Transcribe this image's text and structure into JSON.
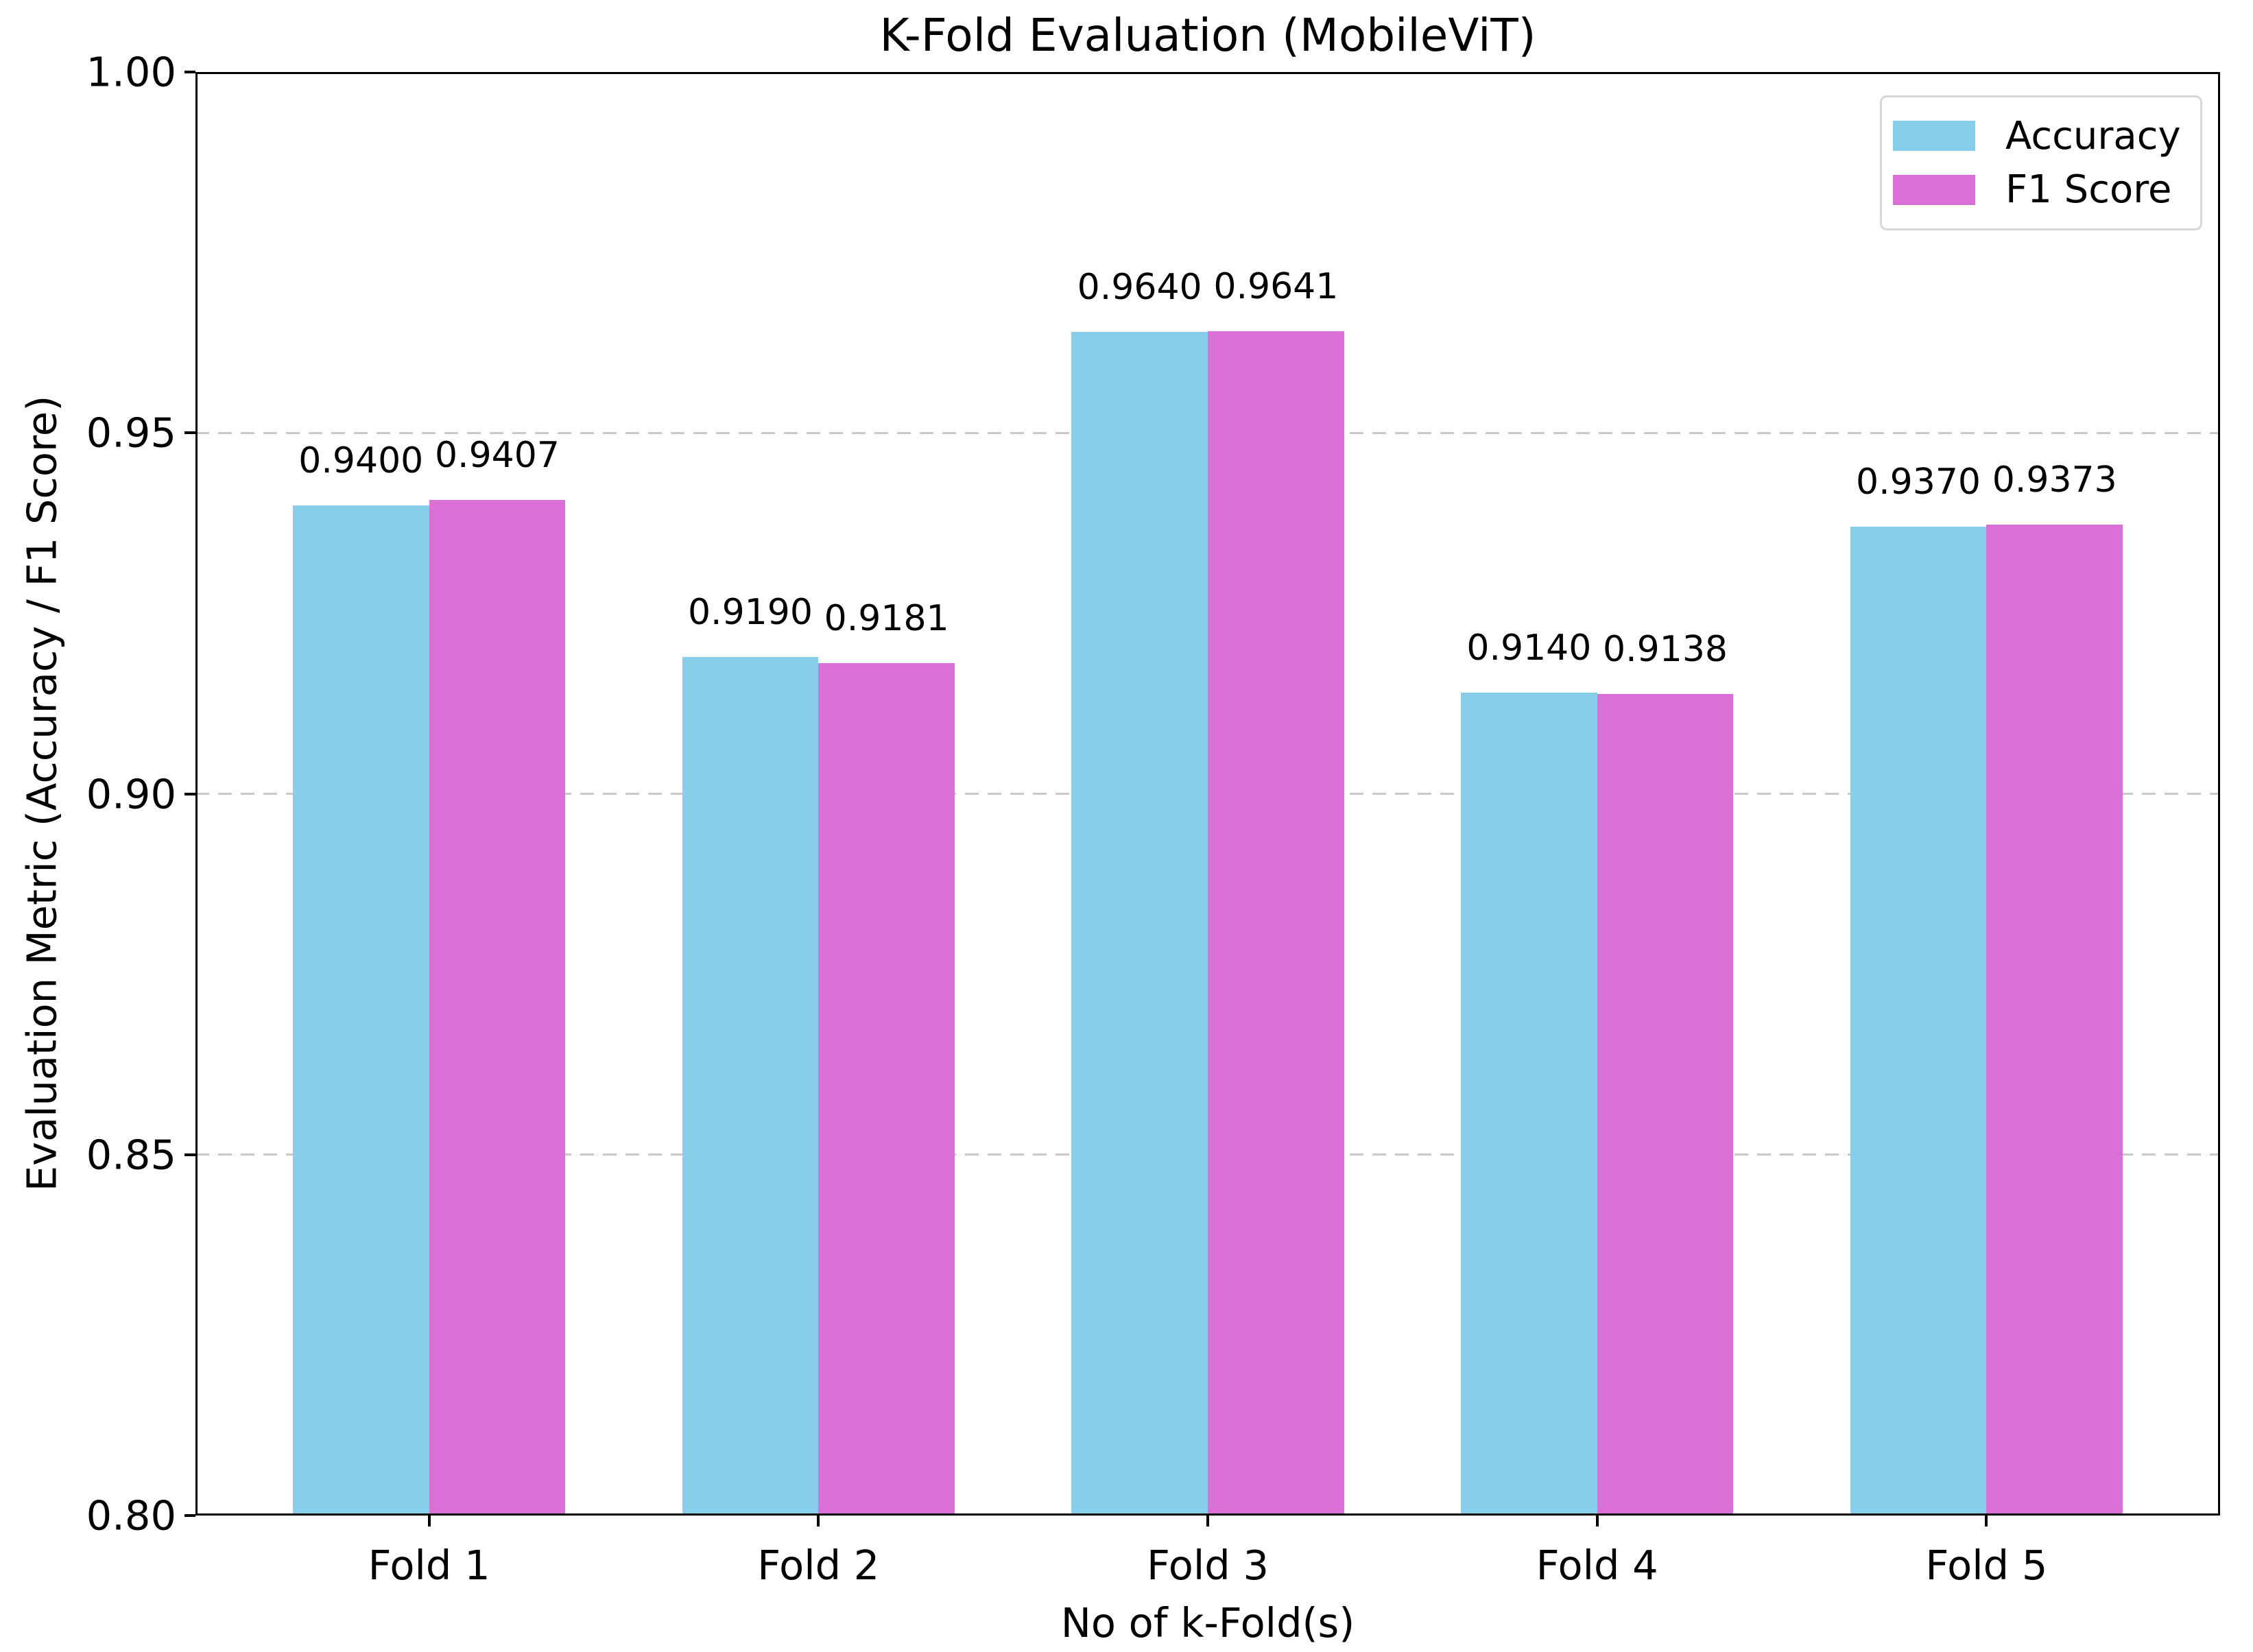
{
  "chart_data": {
    "type": "bar",
    "title": "K-Fold Evaluation (MobileViT)",
    "xlabel": "No of k-Fold(s)",
    "ylabel": "Evaluation Metric (Accuracy / F1 Score)",
    "categories": [
      "Fold 1",
      "Fold 2",
      "Fold 3",
      "Fold 4",
      "Fold 5"
    ],
    "series": [
      {
        "name": "Accuracy",
        "color": "#87CEEB",
        "values": [
          0.94,
          0.919,
          0.964,
          0.914,
          0.937
        ],
        "value_labels": [
          "0.9400",
          "0.9190",
          "0.9640",
          "0.9140",
          "0.9370"
        ]
      },
      {
        "name": "F1 Score",
        "color": "#DA70D6",
        "values": [
          0.9407,
          0.9181,
          0.9641,
          0.9138,
          0.9373
        ],
        "value_labels": [
          "0.9407",
          "0.9181",
          "0.9641",
          "0.9138",
          "0.9373"
        ]
      }
    ],
    "ylim": [
      0.8,
      1.0
    ],
    "yticks": [
      0.8,
      0.85,
      0.9,
      0.95,
      1.0
    ],
    "ytick_labels": [
      "0.80",
      "0.85",
      "0.90",
      "0.95",
      "1.00"
    ],
    "grid": "horizontal dashed at yticks",
    "grid_color": "#c9c9c9",
    "legend_position": "upper right",
    "bar_width_fraction": 0.35,
    "xlim": [
      -0.6,
      4.6
    ]
  }
}
